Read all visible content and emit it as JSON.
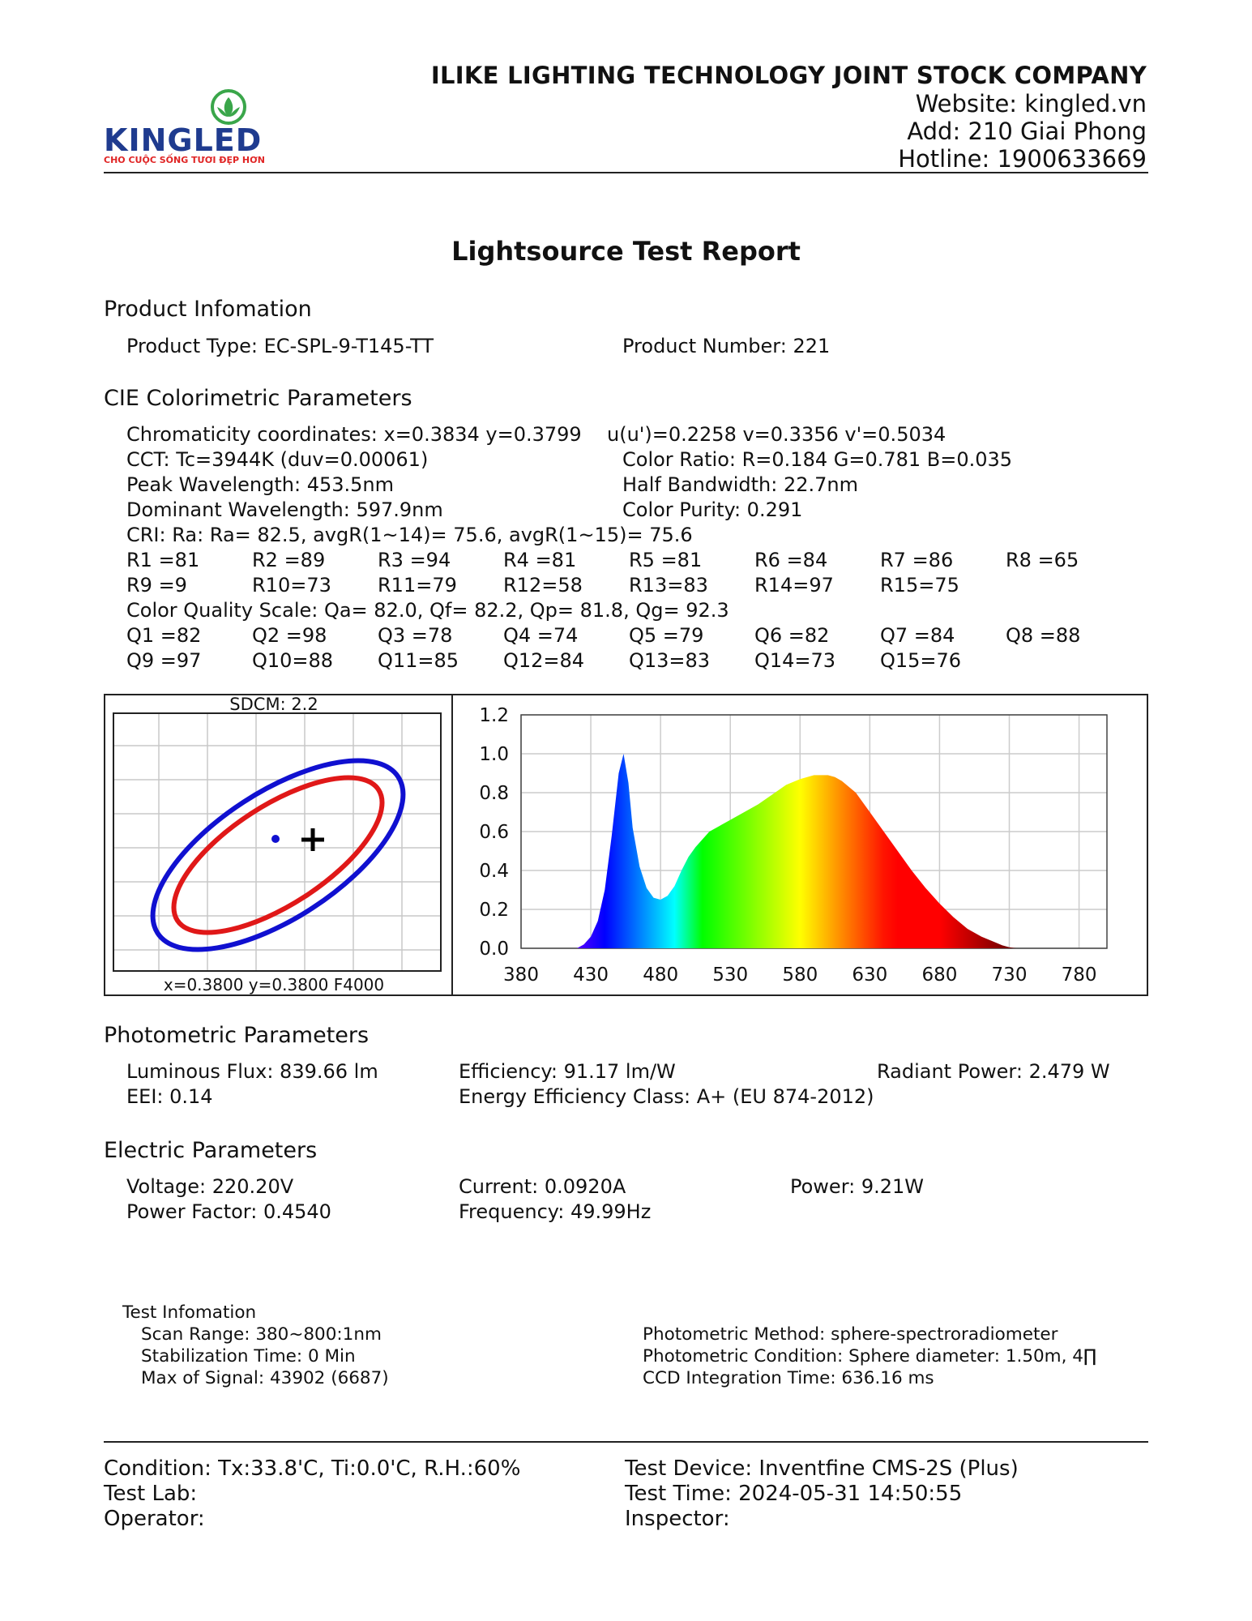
{
  "header": {
    "company": "ILIKE LIGHTING TECHNOLOGY JOINT STOCK COMPANY",
    "website": "Website: kingled.vn",
    "address": "Add: 210 Giai Phong",
    "hotline": "Hotline: 1900633669",
    "logo_text": "KINGLED",
    "logo_slogan": "CHO CUỘC SỐNG TƯƠI ĐẸP HƠN",
    "logo_colors": {
      "primary": "#1f3b8f",
      "accent": "#e02424",
      "leaf": "#3aa64a"
    }
  },
  "title": "Lightsource Test Report",
  "product": {
    "heading": "Product Infomation",
    "type": "Product Type: EC-SPL-9-T145-TT",
    "number": "Product Number: 221"
  },
  "cie": {
    "heading": "CIE Colorimetric Parameters",
    "chromaticity": "Chromaticity coordinates: x=0.3834 y=0.3799",
    "uv": "u(u')=0.2258 v=0.3356 v'=0.5034",
    "cct": "CCT: Tc=3944K (duv=0.00061)",
    "color_ratio": "Color Ratio: R=0.184  G=0.781  B=0.035",
    "peak": "Peak Wavelength: 453.5nm",
    "half_bandwidth": "Half Bandwidth: 22.7nm",
    "dominant": "Dominant Wavelength: 597.9nm",
    "purity": "Color Purity: 0.291",
    "cri": "CRI: Ra: Ra= 82.5, avgR(1~14)= 75.6, avgR(1~15)= 75.6",
    "r_row1": [
      "R1 =81",
      "R2 =89",
      "R3 =94",
      "R4 =81",
      "R5 =81",
      "R6 =84",
      "R7 =86",
      "R8 =65"
    ],
    "r_row2": [
      "R9 =9",
      "R10=73",
      "R11=79",
      "R12=58",
      "R13=83",
      "R14=97",
      "R15=75"
    ],
    "cqs": "Color Quality Scale: Qa= 82.0, Qf= 82.2, Qp= 81.8, Qg= 92.3",
    "q_row1": [
      "Q1 =82",
      "Q2 =98",
      "Q3 =78",
      "Q4 =74",
      "Q5 =79",
      "Q6 =82",
      "Q7 =84",
      "Q8 =88"
    ],
    "q_row2": [
      "Q9 =97",
      "Q10=88",
      "Q11=85",
      "Q12=84",
      "Q13=83",
      "Q14=73",
      "Q15=76"
    ]
  },
  "sdcm_chart": {
    "title": "SDCM:   2.2",
    "caption": "x=0.3800 y=0.3800 F4000",
    "outer_color": "#1010d0",
    "inner_color": "#e01818"
  },
  "chart_data": {
    "type": "area",
    "x_ticks": [
      380,
      430,
      480,
      530,
      580,
      630,
      680,
      730,
      780
    ],
    "y_ticks": [
      "0.0",
      "0.2",
      "0.4",
      "0.6",
      "0.8",
      "1.0",
      "1.2"
    ],
    "xlim": [
      380,
      800
    ],
    "ylim": [
      0,
      1.2
    ],
    "grid": true,
    "series": [
      {
        "x": [
          420,
          425,
          430,
          435,
          440,
          445,
          450,
          453.5,
          457,
          460,
          465,
          470,
          475,
          480,
          485,
          490,
          495,
          500,
          505,
          510,
          515,
          520,
          525,
          530,
          540,
          550,
          560,
          570,
          580,
          590,
          600,
          605,
          610,
          620,
          630,
          640,
          650,
          660,
          670,
          680,
          690,
          700,
          710,
          720,
          725,
          730,
          735
        ],
        "values": [
          0,
          0.02,
          0.06,
          0.14,
          0.3,
          0.58,
          0.9,
          1.0,
          0.85,
          0.62,
          0.42,
          0.31,
          0.26,
          0.25,
          0.27,
          0.32,
          0.4,
          0.47,
          0.52,
          0.56,
          0.6,
          0.62,
          0.64,
          0.66,
          0.7,
          0.74,
          0.79,
          0.84,
          0.87,
          0.89,
          0.89,
          0.88,
          0.86,
          0.8,
          0.7,
          0.6,
          0.5,
          0.4,
          0.31,
          0.23,
          0.16,
          0.1,
          0.06,
          0.03,
          0.015,
          0.005,
          0
        ]
      }
    ]
  },
  "photometric": {
    "heading": "Photometric Parameters",
    "flux": "Luminous Flux: 839.66 lm",
    "efficiency": "Efficiency: 91.17 lm/W",
    "radiant": "Radiant Power: 2.479 W",
    "eei": "EEI:  0.14",
    "energy_class": "Energy Efficiency Class: A+ (EU 874-2012)"
  },
  "electric": {
    "heading": "Electric Parameters",
    "voltage": "Voltage: 220.20V",
    "current": "Current: 0.0920A",
    "power": "Power: 9.21W",
    "pf": "Power Factor: 0.4540",
    "frequency": "Frequency: 49.99Hz"
  },
  "test_info": {
    "heading": "Test Infomation",
    "scan": "Scan Range: 380~800:1nm",
    "stabilization": "Stabilization Time: 0 Min",
    "max_signal": "Max of Signal: 43902 (6687)",
    "method": "Photometric Method: sphere-spectroradiometer",
    "condition": "Photometric Condition: Sphere diameter: 1.50m, 4∏",
    "ccd": "CCD Integration Time: 636.16 ms"
  },
  "footer": {
    "condition": "Condition: Tx:33.8'C, Ti:0.0'C, R.H.:60%",
    "device": "Test Device: Inventfine CMS-2S (Plus)",
    "lab": "Test Lab:",
    "time": "Test Time: 2024-05-31 14:50:55",
    "operator": "Operator:",
    "inspector": "Inspector:"
  }
}
